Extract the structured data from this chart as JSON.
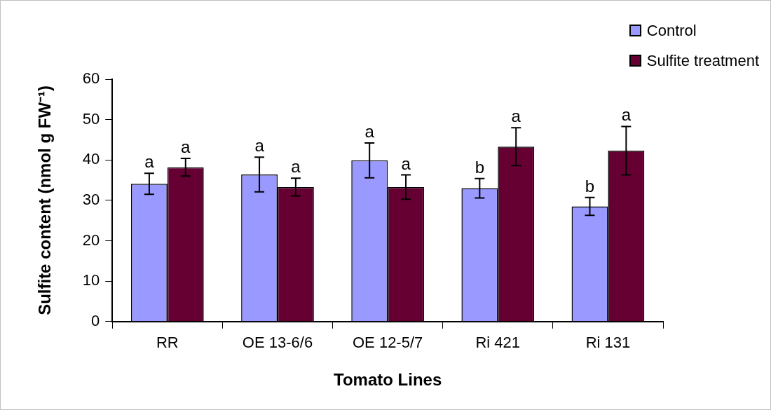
{
  "chart_data": {
    "type": "bar",
    "xlabel": "Tomato Lines",
    "ylabel": "Sulfite content (nmol g FW⁻¹)",
    "categories": [
      "RR",
      "OE 13-6/6",
      "OE 12-5/7",
      "Ri 421",
      "Ri 131"
    ],
    "series": [
      {
        "name": "Control",
        "color": "#9999ff",
        "values": [
          34.1,
          36.4,
          39.9,
          33.0,
          28.5
        ],
        "errors": [
          2.6,
          4.3,
          4.3,
          2.4,
          2.2
        ],
        "value_labels": [
          "a",
          "a",
          "a",
          "b",
          "b"
        ]
      },
      {
        "name": "Sulfite treatment",
        "color": "#660033",
        "values": [
          38.2,
          33.3,
          33.3,
          43.3,
          42.3
        ],
        "errors": [
          2.2,
          2.2,
          3.0,
          4.7,
          6.0
        ],
        "value_labels": [
          "a",
          "a",
          "a",
          "a",
          "a"
        ]
      }
    ],
    "ylim": [
      0,
      60
    ],
    "yticks": [
      0,
      10,
      20,
      30,
      40,
      50,
      60
    ],
    "legend": "top right"
  }
}
